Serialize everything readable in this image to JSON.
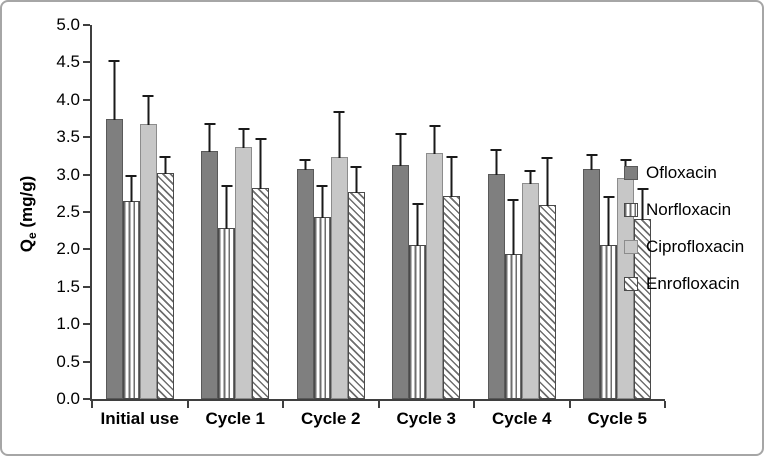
{
  "chart_data": {
    "type": "bar",
    "ylabel": "Qe (mg/g)",
    "ylabel_parts": {
      "base": "Q",
      "sub": "e",
      "unit": " (mg/g)"
    },
    "ylim": [
      0,
      5.0
    ],
    "ytick_step": 0.5,
    "y_tick_labels": [
      "5.0",
      "4.5",
      "4.0",
      "3.5",
      "3.0",
      "2.5",
      "2.0",
      "1.5",
      "1.0",
      "0.5",
      "0.0"
    ],
    "categories": [
      "Initial use",
      "Cycle 1",
      "Cycle 2",
      "Cycle 3",
      "Cycle 4",
      "Cycle 5"
    ],
    "series": [
      {
        "name": "Ofloxacin",
        "style": "solid-dark",
        "color": "#7f7f7f",
        "values": [
          3.75,
          3.32,
          3.08,
          3.13,
          3.01,
          3.07
        ],
        "errors": [
          0.8,
          0.38,
          0.14,
          0.44,
          0.35,
          0.22
        ]
      },
      {
        "name": "Norfloxacin",
        "style": "vertical-stripes",
        "color": "#6e6e6e",
        "values": [
          2.65,
          2.28,
          2.43,
          2.06,
          1.94,
          2.06
        ],
        "errors": [
          0.36,
          0.6,
          0.44,
          0.57,
          0.75,
          0.67
        ]
      },
      {
        "name": "Ciprofloxacin",
        "style": "solid-light",
        "color": "#c7c7c7",
        "values": [
          3.68,
          3.37,
          3.24,
          3.29,
          2.89,
          2.95
        ],
        "errors": [
          0.4,
          0.27,
          0.62,
          0.39,
          0.18,
          0.27
        ]
      },
      {
        "name": "Enrofloxacin",
        "style": "diagonal-stripes",
        "color": "#6e6e6e",
        "values": [
          3.02,
          2.82,
          2.77,
          2.71,
          2.6,
          2.4
        ],
        "errors": [
          0.24,
          0.68,
          0.36,
          0.55,
          0.65,
          0.44
        ]
      }
    ],
    "error_bars": "upper",
    "grid": false,
    "legend_position": "right",
    "colors": {
      "axis": "#3f3f3f",
      "error_bar": "#1a1a1a",
      "figure_border": "#a6a6a6",
      "dark_gray_fill": "#7f7f7f",
      "light_gray_fill": "#c7c7c7"
    }
  }
}
